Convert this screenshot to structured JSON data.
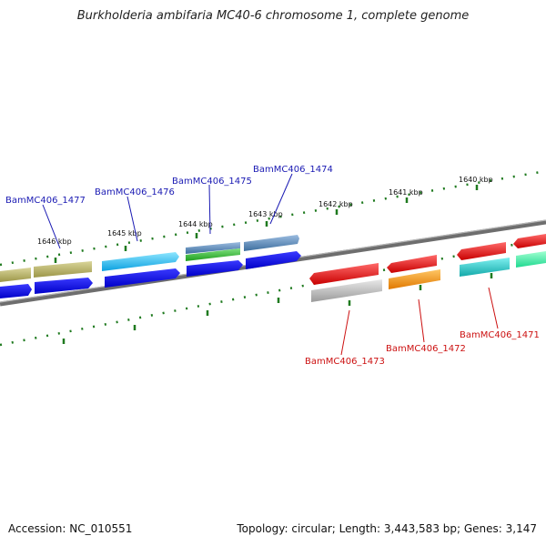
{
  "title": "Burkholderia ambifaria MC40-6 chromosome 1, complete genome",
  "footer": {
    "accession": "Accession: NC_010551",
    "stats": "Topology: circular; Length: 3,443,583 bp; Genes: 3,147"
  },
  "colors": {
    "tick": "#1f7a1f",
    "backbone": "#7a7a7a",
    "forward_label": "#1a1ab3",
    "reverse_label": "#cc1111"
  },
  "ticks": [
    {
      "label": "1646 kbp"
    },
    {
      "label": "1645 kbp"
    },
    {
      "label": "1644 kbp"
    },
    {
      "label": "1643 kbp"
    },
    {
      "label": "1642 kbp"
    },
    {
      "label": "1641 kbp"
    },
    {
      "label": "1640 kbp"
    }
  ],
  "genes_forward": [
    {
      "label": "BamMC406_1477"
    },
    {
      "label": "BamMC406_1476"
    },
    {
      "label": "BamMC406_1475"
    },
    {
      "label": "BamMC406_1474"
    }
  ],
  "genes_reverse": [
    {
      "label": "BamMC406_1473"
    },
    {
      "label": "BamMC406_1472"
    },
    {
      "label": "BamMC406_1471"
    }
  ]
}
